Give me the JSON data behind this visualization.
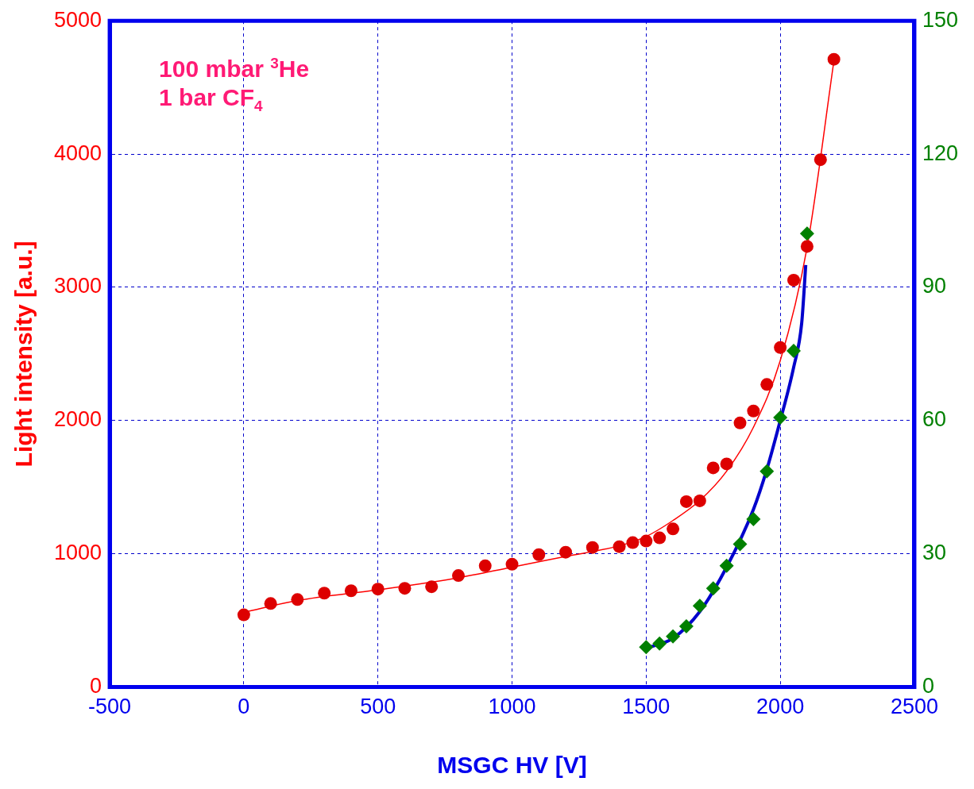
{
  "chart_data": {
    "type": "scatter",
    "xlabel": "MSGC HV [V]",
    "ylabel": "Light intensity [a.u.]",
    "xlim": [
      -500,
      2500
    ],
    "xticks": [
      -500,
      0,
      500,
      1000,
      1500,
      2000,
      2500
    ],
    "ylim": [
      0,
      5000
    ],
    "yticks": [
      0,
      1000,
      2000,
      3000,
      4000,
      5000
    ],
    "y2lim": [
      0,
      150
    ],
    "y2ticks": [
      0,
      30,
      60,
      90,
      120,
      150
    ],
    "grid": true,
    "legend": false,
    "annotations": [
      "100 mbar $^{3}$He",
      "1 bar CF$_{4}$"
    ],
    "series": [
      {
        "type": "line",
        "color": "#ff0000",
        "marker": "none",
        "x": [
          0,
          200,
          500,
          800,
          1000,
          1200,
          1400,
          1500,
          1600,
          1700,
          1800,
          1900,
          2000,
          2100,
          2200
        ],
        "values": [
          560,
          650,
          730,
          820,
          900,
          980,
          1060,
          1130,
          1250,
          1400,
          1620,
          1950,
          2450,
          3300,
          4700
        ]
      },
      {
        "type": "line",
        "color": "#0000cc",
        "marker": "none",
        "axis": "y2",
        "x": [
          1515,
          1600,
          1700,
          1800,
          1900,
          1950,
          2000,
          2050,
          2080,
          2095
        ],
        "values": [
          9,
          11,
          17,
          27,
          40,
          49,
          60,
          72,
          82,
          95
        ]
      },
      {
        "type": "scatter",
        "color": "#dd0000",
        "marker": "circle",
        "x": [
          0,
          100,
          200,
          300,
          400,
          500,
          600,
          700,
          800,
          900,
          1000,
          1100,
          1200,
          1300,
          1400,
          1450,
          1500,
          1550,
          1600,
          1650,
          1700,
          1750,
          1800,
          1850,
          1900,
          1950,
          2000,
          2050,
          2100,
          2150,
          2200
        ],
        "values": [
          542,
          627,
          657,
          705,
          723,
          735,
          741,
          753,
          837,
          910,
          922,
          994,
          1012,
          1048,
          1054,
          1084,
          1096,
          1120,
          1187,
          1392,
          1398,
          1645,
          1675,
          1982,
          2072,
          2271,
          2548,
          3054,
          3307,
          3958,
          4711
        ]
      },
      {
        "type": "scatter",
        "color": "#008000",
        "marker": "diamond",
        "axis": "y2",
        "x": [
          1500,
          1550,
          1600,
          1650,
          1700,
          1750,
          1800,
          1850,
          1900,
          1950,
          2000,
          2050,
          2100
        ],
        "values": [
          9.0,
          9.8,
          11.4,
          13.7,
          18.3,
          22.2,
          27.3,
          32.2,
          37.8,
          48.6,
          60.7,
          75.7,
          102.1
        ]
      }
    ]
  }
}
